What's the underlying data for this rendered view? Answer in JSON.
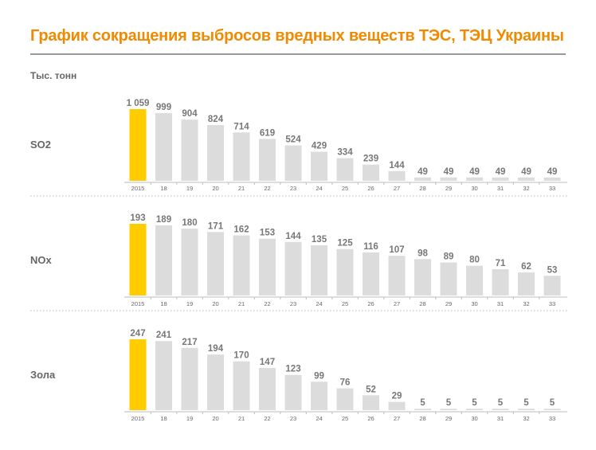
{
  "title": "График сокращения выбросов вредных веществ ТЭС, ТЭЦ Украины",
  "units": "Тыс. тонн",
  "colors": {
    "title": "#f08a00",
    "highlight": "#ffcc00",
    "bar": "#dcdcdc",
    "text": "#777777",
    "rule": "#9a9a9a"
  },
  "chart_data": [
    {
      "type": "bar",
      "panel_label": "SO2",
      "categories": [
        "2015",
        "18",
        "19",
        "20",
        "21",
        "22",
        "23",
        "24",
        "25",
        "26",
        "27",
        "28",
        "29",
        "30",
        "31",
        "32",
        "33"
      ],
      "values": [
        1059,
        999,
        904,
        824,
        714,
        619,
        524,
        429,
        334,
        239,
        144,
        49,
        49,
        49,
        49,
        49,
        49
      ],
      "value_labels": [
        "1 059",
        "999",
        "904",
        "824",
        "714",
        "619",
        "524",
        "429",
        "334",
        "239",
        "144",
        "49",
        "49",
        "49",
        "49",
        "49",
        "49"
      ],
      "highlight_index": 0,
      "grid": false
    },
    {
      "type": "bar",
      "panel_label": "NOx",
      "categories": [
        "2015",
        "18",
        "19",
        "20",
        "21",
        "22",
        "23",
        "24",
        "25",
        "26",
        "27",
        "28",
        "29",
        "30",
        "31",
        "32",
        "33"
      ],
      "values": [
        193,
        189,
        180,
        171,
        162,
        153,
        144,
        135,
        125,
        116,
        107,
        98,
        89,
        80,
        71,
        62,
        53
      ],
      "value_labels": [
        "193",
        "189",
        "180",
        "171",
        "162",
        "153",
        "144",
        "135",
        "125",
        "116",
        "107",
        "98",
        "89",
        "80",
        "71",
        "62",
        "53"
      ],
      "highlight_index": 0,
      "grid": false
    },
    {
      "type": "bar",
      "panel_label": "Зола",
      "categories": [
        "2015",
        "18",
        "19",
        "20",
        "21",
        "22",
        "23",
        "24",
        "25",
        "26",
        "27",
        "28",
        "29",
        "30",
        "31",
        "32",
        "33"
      ],
      "values": [
        247,
        241,
        217,
        194,
        170,
        147,
        123,
        99,
        76,
        52,
        29,
        5,
        5,
        5,
        5,
        5,
        5
      ],
      "value_labels": [
        "247",
        "241",
        "217",
        "194",
        "170",
        "147",
        "123",
        "99",
        "76",
        "52",
        "29",
        "5",
        "5",
        "5",
        "5",
        "5",
        "5"
      ],
      "highlight_index": 0,
      "grid": false
    }
  ]
}
